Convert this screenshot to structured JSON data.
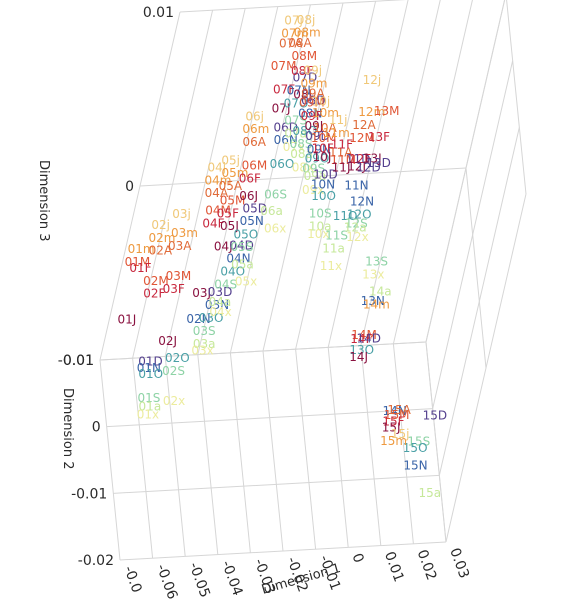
{
  "chart_data": {
    "type": "scatter",
    "projection": "3d",
    "title": "",
    "xlabel": "Dimension 1",
    "ylabel": "Dimension 2",
    "zlabel": "Dimension 3",
    "xlim": [
      -0.07,
      0.035
    ],
    "ylim": [
      -0.022,
      0.022
    ],
    "zlim": [
      -0.015,
      0.012
    ],
    "x_ticks": [
      "-0.0",
      "-0.06",
      "-0.05",
      "-0.04",
      "-0.03",
      "-0.02",
      "-0.01",
      "0",
      "0.01",
      "0.02",
      "0.03"
    ],
    "y_ticks": [
      "0.01",
      "0",
      "-0.01",
      "-0.02"
    ],
    "z_ticks": [
      "0.01",
      "0",
      "-0.01"
    ],
    "grid": true,
    "legend": "none",
    "label_colors": {
      "j": "#f0c878",
      "m": "#ee9a40",
      "A": "#e06a38",
      "M": "#e05636",
      "F": "#c8283e",
      "J": "#8a1240",
      "D": "#54408e",
      "N": "#3a64a8",
      "O": "#4aa0a6",
      "S": "#8ed3a6",
      "a": "#c6e89a",
      "x": "#ecec9e"
    },
    "points": [
      {
        "label": "01m",
        "x": -0.07,
        "y": 0.02,
        "z": -0.006
      },
      {
        "label": "01M",
        "x": -0.07,
        "y": 0.02,
        "z": -0.007
      },
      {
        "label": "01F",
        "x": -0.068,
        "y": 0.02,
        "z": -0.0075
      },
      {
        "label": "01J",
        "x": -0.068,
        "y": 0.02,
        "z": -0.0115
      },
      {
        "label": "01D",
        "x": -0.062,
        "y": 0.012,
        "z": -0.012
      },
      {
        "label": "01N",
        "x": -0.062,
        "y": 0.012,
        "z": -0.0125
      },
      {
        "label": "01O",
        "x": -0.061,
        "y": 0.012,
        "z": -0.013
      },
      {
        "label": "01S",
        "x": -0.06,
        "y": 0.011,
        "z": -0.0145
      },
      {
        "label": "01a",
        "x": -0.059,
        "y": 0.011,
        "z": -0.0152
      },
      {
        "label": "01x",
        "x": -0.059,
        "y": 0.011,
        "z": -0.0158
      },
      {
        "label": "02j",
        "x": -0.065,
        "y": 0.018,
        "z": -0.0035
      },
      {
        "label": "02m",
        "x": -0.065,
        "y": 0.018,
        "z": -0.0045
      },
      {
        "label": "02A",
        "x": -0.064,
        "y": 0.018,
        "z": -0.0055
      },
      {
        "label": "02M",
        "x": -0.064,
        "y": 0.017,
        "z": -0.0075
      },
      {
        "label": "02F",
        "x": -0.063,
        "y": 0.017,
        "z": -0.0085
      },
      {
        "label": "02J",
        "x": -0.057,
        "y": 0.012,
        "z": -0.0105
      },
      {
        "label": "02N",
        "x": -0.05,
        "y": 0.011,
        "z": -0.0085
      },
      {
        "label": "02O",
        "x": -0.054,
        "y": 0.011,
        "z": -0.0115
      },
      {
        "label": "02S",
        "x": -0.054,
        "y": 0.011,
        "z": -0.0125
      },
      {
        "label": "02x",
        "x": -0.052,
        "y": 0.01,
        "z": -0.0145
      },
      {
        "label": "03j",
        "x": -0.06,
        "y": 0.016,
        "z": -0.002
      },
      {
        "label": "03m",
        "x": -0.059,
        "y": 0.016,
        "z": -0.0035
      },
      {
        "label": "03A",
        "x": -0.059,
        "y": 0.016,
        "z": -0.0045
      },
      {
        "label": "03M",
        "x": -0.058,
        "y": 0.015,
        "z": -0.0065
      },
      {
        "label": "03F",
        "x": -0.058,
        "y": 0.015,
        "z": -0.0075
      },
      {
        "label": "03J",
        "x": -0.05,
        "y": 0.011,
        "z": -0.0065
      },
      {
        "label": "03D",
        "x": -0.045,
        "y": 0.011,
        "z": -0.0065
      },
      {
        "label": "03N",
        "x": -0.045,
        "y": 0.011,
        "z": -0.0075
      },
      {
        "label": "03O",
        "x": -0.046,
        "y": 0.011,
        "z": -0.0085
      },
      {
        "label": "03S",
        "x": -0.047,
        "y": 0.011,
        "z": -0.0095
      },
      {
        "label": "03a",
        "x": -0.046,
        "y": 0.011,
        "z": -0.0105
      },
      {
        "label": "03x",
        "x": -0.046,
        "y": 0.011,
        "z": -0.011
      },
      {
        "label": "04j",
        "x": -0.052,
        "y": 0.016,
        "z": 0.0015
      },
      {
        "label": "04m",
        "x": -0.052,
        "y": 0.016,
        "z": 0.0005
      },
      {
        "label": "04A",
        "x": -0.051,
        "y": 0.016,
        "z": -0.0005
      },
      {
        "label": "04M",
        "x": -0.05,
        "y": 0.015,
        "z": -0.0015
      },
      {
        "label": "04F",
        "x": -0.05,
        "y": 0.015,
        "z": -0.0025
      },
      {
        "label": "04J",
        "x": -0.045,
        "y": 0.014,
        "z": -0.004
      },
      {
        "label": "04D",
        "x": -0.04,
        "y": 0.014,
        "z": -0.004
      },
      {
        "label": "04N",
        "x": -0.04,
        "y": 0.014,
        "z": -0.005
      },
      {
        "label": "04O",
        "x": -0.041,
        "y": 0.014,
        "z": -0.006
      },
      {
        "label": "04S",
        "x": -0.042,
        "y": 0.014,
        "z": -0.007
      },
      {
        "label": "04a",
        "x": -0.043,
        "y": 0.013,
        "z": -0.008
      },
      {
        "label": "04x",
        "x": -0.042,
        "y": 0.013,
        "z": -0.0088
      },
      {
        "label": "05j",
        "x": -0.048,
        "y": 0.016,
        "z": 0.002
      },
      {
        "label": "05m",
        "x": -0.047,
        "y": 0.016,
        "z": 0.001
      },
      {
        "label": "05A",
        "x": -0.047,
        "y": 0.016,
        "z": 0.0
      },
      {
        "label": "05M",
        "x": -0.046,
        "y": 0.015,
        "z": -0.0008
      },
      {
        "label": "05F",
        "x": -0.046,
        "y": 0.015,
        "z": -0.0018
      },
      {
        "label": "05J",
        "x": -0.044,
        "y": 0.015,
        "z": -0.0028
      },
      {
        "label": "05D",
        "x": -0.038,
        "y": 0.015,
        "z": -0.0015
      },
      {
        "label": "05N",
        "x": -0.038,
        "y": 0.015,
        "z": -0.0025
      },
      {
        "label": "05O",
        "x": -0.039,
        "y": 0.015,
        "z": -0.0035
      },
      {
        "label": "05S",
        "x": -0.039,
        "y": 0.015,
        "z": -0.0045
      },
      {
        "label": "05a",
        "x": -0.038,
        "y": 0.014,
        "z": -0.0055
      },
      {
        "label": "05x",
        "x": -0.036,
        "y": 0.013,
        "z": -0.0065
      },
      {
        "label": "06j",
        "x": -0.043,
        "y": 0.017,
        "z": 0.005
      },
      {
        "label": "06m",
        "x": -0.043,
        "y": 0.017,
        "z": 0.004
      },
      {
        "label": "06A",
        "x": -0.042,
        "y": 0.017,
        "z": 0.003
      },
      {
        "label": "06M",
        "x": -0.041,
        "y": 0.016,
        "z": 0.0015
      },
      {
        "label": "06F",
        "x": -0.041,
        "y": 0.016,
        "z": 0.0005
      },
      {
        "label": "06J",
        "x": -0.04,
        "y": 0.015,
        "z": -0.0005
      },
      {
        "label": "06D",
        "x": -0.033,
        "y": 0.017,
        "z": 0.004
      },
      {
        "label": "06N",
        "x": -0.032,
        "y": 0.017,
        "z": 0.003
      },
      {
        "label": "06O",
        "x": -0.032,
        "y": 0.016,
        "z": 0.0015
      },
      {
        "label": "06S",
        "x": -0.032,
        "y": 0.015,
        "z": -0.0005
      },
      {
        "label": "06a",
        "x": -0.032,
        "y": 0.015,
        "z": -0.0018
      },
      {
        "label": "06x",
        "x": -0.03,
        "y": 0.014,
        "z": -0.0028
      },
      {
        "label": "07j",
        "x": -0.037,
        "y": 0.018,
        "z": 0.012
      },
      {
        "label": "07m",
        "x": -0.037,
        "y": 0.018,
        "z": 0.011
      },
      {
        "label": "07A",
        "x": -0.037,
        "y": 0.018,
        "z": 0.0102
      },
      {
        "label": "07M",
        "x": -0.038,
        "y": 0.018,
        "z": 0.0085
      },
      {
        "label": "07F",
        "x": -0.036,
        "y": 0.017,
        "z": 0.007
      },
      {
        "label": "07J",
        "x": -0.035,
        "y": 0.017,
        "z": 0.0055
      },
      {
        "label": "07D",
        "x": -0.03,
        "y": 0.018,
        "z": 0.0075
      },
      {
        "label": "07N",
        "x": -0.031,
        "y": 0.018,
        "z": 0.0065
      },
      {
        "label": "07O",
        "x": -0.031,
        "y": 0.018,
        "z": 0.0055
      },
      {
        "label": "07S",
        "x": -0.03,
        "y": 0.017,
        "z": 0.0045
      },
      {
        "label": "07a",
        "x": -0.029,
        "y": 0.017,
        "z": 0.0035
      },
      {
        "label": "07x",
        "x": -0.029,
        "y": 0.016,
        "z": 0.0028
      },
      {
        "label": "08j",
        "x": -0.033,
        "y": 0.018,
        "z": 0.012
      },
      {
        "label": "08m",
        "x": -0.033,
        "y": 0.018,
        "z": 0.011
      },
      {
        "label": "08A",
        "x": -0.034,
        "y": 0.018,
        "z": 0.0102
      },
      {
        "label": "08M",
        "x": -0.032,
        "y": 0.018,
        "z": 0.0092
      },
      {
        "label": "08F",
        "x": -0.031,
        "y": 0.018,
        "z": 0.008
      },
      {
        "label": "08J",
        "x": -0.029,
        "y": 0.017,
        "z": 0.0065
      },
      {
        "label": "08D",
        "x": -0.026,
        "y": 0.017,
        "z": 0.006
      },
      {
        "label": "08N",
        "x": -0.026,
        "y": 0.017,
        "z": 0.005
      },
      {
        "label": "08O",
        "x": -0.027,
        "y": 0.016,
        "z": 0.004
      },
      {
        "label": "08S",
        "x": -0.027,
        "y": 0.016,
        "z": 0.003
      },
      {
        "label": "08a",
        "x": -0.026,
        "y": 0.016,
        "z": 0.0022
      },
      {
        "label": "08x",
        "x": -0.025,
        "y": 0.015,
        "z": 0.0015
      },
      {
        "label": "09j",
        "x": -0.027,
        "y": 0.018,
        "z": 0.008
      },
      {
        "label": "09m",
        "x": -0.027,
        "y": 0.018,
        "z": 0.007
      },
      {
        "label": "09A",
        "x": -0.026,
        "y": 0.018,
        "z": 0.0062
      },
      {
        "label": "09M",
        "x": -0.026,
        "y": 0.018,
        "z": 0.0055
      },
      {
        "label": "09F",
        "x": -0.025,
        "y": 0.017,
        "z": 0.0048
      },
      {
        "label": "09J",
        "x": -0.023,
        "y": 0.017,
        "z": 0.004
      },
      {
        "label": "09D",
        "x": -0.022,
        "y": 0.017,
        "z": 0.0032
      },
      {
        "label": "09N",
        "x": -0.021,
        "y": 0.016,
        "z": 0.0025
      },
      {
        "label": "09O",
        "x": -0.021,
        "y": 0.016,
        "z": 0.0018
      },
      {
        "label": "09S",
        "x": -0.021,
        "y": 0.016,
        "z": 0.001
      },
      {
        "label": "09a",
        "x": -0.02,
        "y": 0.016,
        "z": 0.0004
      },
      {
        "label": "09x",
        "x": -0.02,
        "y": 0.015,
        "z": -0.0003
      },
      {
        "label": "10j",
        "x": -0.022,
        "y": 0.018,
        "z": 0.0055
      },
      {
        "label": "10m",
        "x": -0.021,
        "y": 0.018,
        "z": 0.0046
      },
      {
        "label": "10A",
        "x": -0.02,
        "y": 0.017,
        "z": 0.0038
      },
      {
        "label": "10M",
        "x": -0.02,
        "y": 0.017,
        "z": 0.003
      },
      {
        "label": "10F",
        "x": -0.019,
        "y": 0.017,
        "z": 0.0022
      },
      {
        "label": "10J",
        "x": -0.018,
        "y": 0.017,
        "z": 0.0015
      },
      {
        "label": "10D",
        "x": -0.017,
        "y": 0.016,
        "z": 0.0005
      },
      {
        "label": "10N",
        "x": -0.017,
        "y": 0.016,
        "z": -0.0003
      },
      {
        "label": "10O",
        "x": -0.016,
        "y": 0.016,
        "z": -0.0012
      },
      {
        "label": "10S",
        "x": -0.016,
        "y": 0.015,
        "z": -0.0022
      },
      {
        "label": "10a",
        "x": -0.015,
        "y": 0.015,
        "z": -0.0032
      },
      {
        "label": "10x",
        "x": -0.015,
        "y": 0.015,
        "z": -0.0038
      },
      {
        "label": "11j",
        "x": -0.015,
        "y": 0.018,
        "z": 0.004
      },
      {
        "label": "11m",
        "x": -0.016,
        "y": 0.018,
        "z": 0.003
      },
      {
        "label": "11A",
        "x": -0.013,
        "y": 0.017,
        "z": 0.0018
      },
      {
        "label": "11M",
        "x": -0.012,
        "y": 0.017,
        "z": 0.0012
      },
      {
        "label": "11F",
        "x": -0.013,
        "y": 0.017,
        "z": 0.0024
      },
      {
        "label": "11J",
        "x": -0.011,
        "y": 0.017,
        "z": 0.0006
      },
      {
        "label": "11D",
        "x": -0.007,
        "y": 0.017,
        "z": 0.0012
      },
      {
        "label": "11N",
        "x": -0.006,
        "y": 0.016,
        "z": -0.0005
      },
      {
        "label": "11O",
        "x": -0.008,
        "y": 0.015,
        "z": -0.0025
      },
      {
        "label": "11S",
        "x": -0.009,
        "y": 0.015,
        "z": -0.004
      },
      {
        "label": "11a",
        "x": -0.009,
        "y": 0.015,
        "z": -0.005
      },
      {
        "label": "11x",
        "x": -0.009,
        "y": 0.014,
        "z": -0.006
      },
      {
        "label": "12j",
        "x": -0.007,
        "y": 0.018,
        "z": 0.007
      },
      {
        "label": "12m",
        "x": -0.006,
        "y": 0.018,
        "z": 0.0045
      },
      {
        "label": "12A",
        "x": -0.007,
        "y": 0.018,
        "z": 0.0035
      },
      {
        "label": "12M",
        "x": -0.007,
        "y": 0.018,
        "z": 0.0025
      },
      {
        "label": "12F",
        "x": -0.006,
        "y": 0.017,
        "z": 0.0012
      },
      {
        "label": "12J",
        "x": -0.006,
        "y": 0.017,
        "z": 0.0006
      },
      {
        "label": "12D",
        "x": -0.003,
        "y": 0.017,
        "z": 0.0005
      },
      {
        "label": "12N",
        "x": -0.003,
        "y": 0.016,
        "z": -0.0018
      },
      {
        "label": "12O",
        "x": -0.003,
        "y": 0.016,
        "z": -0.0028
      },
      {
        "label": "12S",
        "x": -0.003,
        "y": 0.016,
        "z": -0.0035
      },
      {
        "label": "12a",
        "x": -0.003,
        "y": 0.016,
        "z": -0.0038
      },
      {
        "label": "12x",
        "x": -0.002,
        "y": 0.015,
        "z": -0.0042
      },
      {
        "label": "13M",
        "x": -0.001,
        "y": 0.018,
        "z": 0.0045
      },
      {
        "label": "13F",
        "x": -0.001,
        "y": 0.018,
        "z": 0.0025
      },
      {
        "label": "13J",
        "x": -0.001,
        "y": 0.018,
        "z": 0.0008
      },
      {
        "label": "13D",
        "x": 0.0,
        "y": 0.017,
        "z": 0.0008
      },
      {
        "label": "13O",
        "x": 0.006,
        "y": 0.012,
        "z": -0.012
      },
      {
        "label": "13N",
        "x": 0.006,
        "y": 0.012,
        "z": -0.0082
      },
      {
        "label": "13S",
        "x": 0.005,
        "y": 0.013,
        "z": -0.0055
      },
      {
        "label": "13x",
        "x": 0.005,
        "y": 0.013,
        "z": -0.0065
      },
      {
        "label": "14M",
        "x": 0.005,
        "y": 0.011,
        "z": -0.0105
      },
      {
        "label": "14F",
        "x": 0.005,
        "y": 0.011,
        "z": -0.0108
      },
      {
        "label": "14D",
        "x": 0.007,
        "y": 0.011,
        "z": -0.0108
      },
      {
        "label": "14J",
        "x": 0.006,
        "y": 0.011,
        "z": -0.0122
      },
      {
        "label": "14N",
        "x": 0.016,
        "y": 0.001,
        "z": -0.013
      },
      {
        "label": "14m",
        "x": 0.007,
        "y": 0.012,
        "z": -0.0085
      },
      {
        "label": "14a",
        "x": 0.008,
        "y": 0.012,
        "z": -0.0075
      },
      {
        "label": "15D",
        "x": 0.026,
        "y": -0.006,
        "z": -0.011
      },
      {
        "label": "15S",
        "x": 0.023,
        "y": -0.006,
        "z": -0.013
      },
      {
        "label": "15O",
        "x": 0.022,
        "y": -0.006,
        "z": -0.0135
      },
      {
        "label": "15N",
        "x": 0.023,
        "y": -0.007,
        "z": -0.0145
      },
      {
        "label": "15a",
        "x": 0.029,
        "y": -0.009,
        "z": -0.016
      },
      {
        "label": "15M",
        "x": 0.017,
        "y": 0.0015,
        "z": -0.0135
      },
      {
        "label": "15F",
        "x": 0.017,
        "y": 0.0015,
        "z": -0.014
      },
      {
        "label": "15J",
        "x": 0.017,
        "y": 0.001,
        "z": -0.0143
      },
      {
        "label": "15m",
        "x": 0.017,
        "y": 0.0,
        "z": -0.015
      },
      {
        "label": "15A",
        "x": 0.018,
        "y": 0.002,
        "z": -0.0133
      },
      {
        "label": "15j",
        "x": 0.02,
        "y": 0.0,
        "z": -0.0145
      }
    ]
  }
}
